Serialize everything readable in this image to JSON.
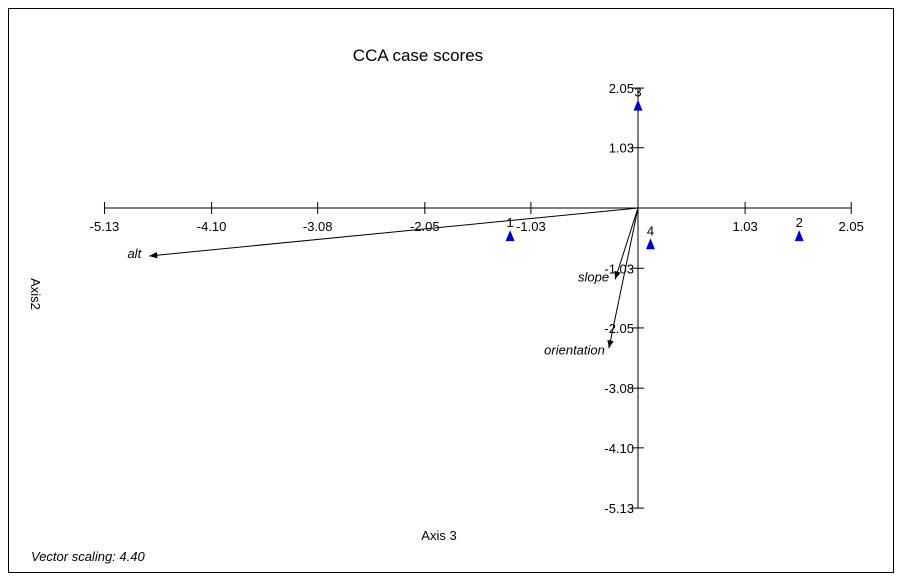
{
  "chart_data": {
    "type": "scatter",
    "title": "CCA case scores",
    "xlabel": "Axis 3",
    "ylabel": "Axis2",
    "xlim": [
      -5.13,
      2.05
    ],
    "ylim": [
      -5.13,
      2.05
    ],
    "x_ticks": [
      -5.13,
      -4.1,
      -3.08,
      -2.05,
      -1.03,
      1.03,
      2.05
    ],
    "x_tick_labels": [
      "-5.13",
      "-4.10",
      "-3.08",
      "-2.05",
      "-1.03",
      "1.03",
      "2.05"
    ],
    "y_ticks": [
      2.05,
      1.03,
      -1.03,
      -2.05,
      -3.08,
      -4.1,
      -5.13
    ],
    "y_tick_labels": [
      "2.05",
      "1.03",
      "-1.03",
      "-2.05",
      "-3.08",
      "-4.10",
      "-5.13"
    ],
    "points": [
      {
        "label": "1",
        "x": -1.23,
        "y": -0.48
      },
      {
        "label": "2",
        "x": 1.55,
        "y": -0.48
      },
      {
        "label": "3",
        "x": 0.0,
        "y": 1.75
      },
      {
        "label": "4",
        "x": 0.12,
        "y": -0.62
      }
    ],
    "vectors": [
      {
        "label": "alt",
        "x": -4.7,
        "y": -0.82
      },
      {
        "label": "slope",
        "x": -0.22,
        "y": -1.22
      },
      {
        "label": "orientation",
        "x": -0.28,
        "y": -2.4
      }
    ],
    "marker_color": "#0000c0",
    "grid": false
  },
  "note": "Vector scaling: 4.40"
}
